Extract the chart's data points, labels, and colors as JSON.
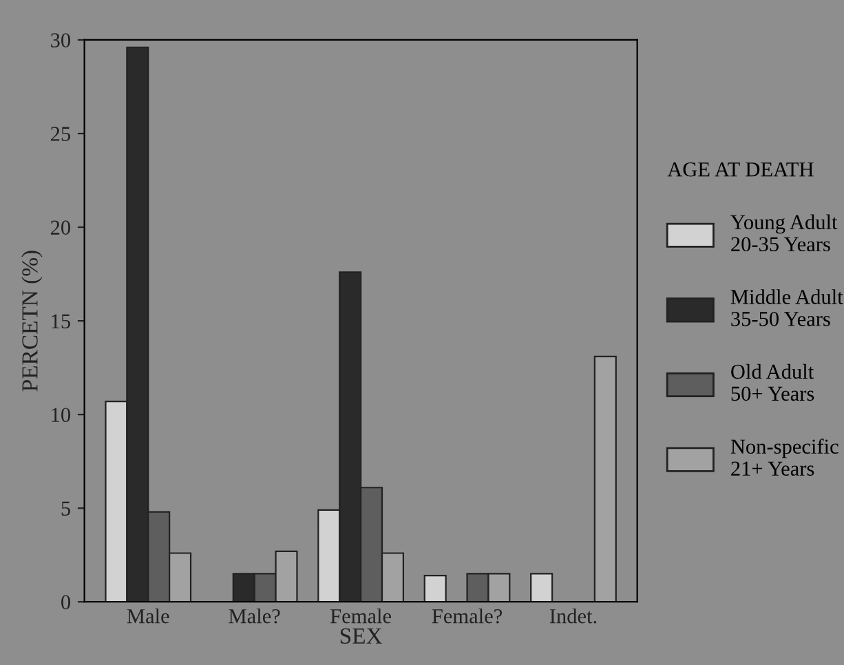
{
  "chart_data": {
    "type": "bar",
    "xlabel": "SEX",
    "ylabel": "PERCETN (%)",
    "legend_title": "AGE AT DEATH",
    "legend": "right",
    "categories": [
      "Male",
      "Male?",
      "Female",
      "Female?",
      "Indet."
    ],
    "series": [
      {
        "name": "Young Adult\n20-35 Years",
        "color": "#d2d2d2",
        "values": [
          10.7,
          null,
          4.9,
          1.4,
          1.5
        ]
      },
      {
        "name": "Middle Adult\n35-50 Years",
        "color": "#2a2a2a",
        "values": [
          29.6,
          1.5,
          17.6,
          null,
          null
        ]
      },
      {
        "name": "Old Adult\n50+ Years",
        "color": "#5e5e5e",
        "values": [
          4.8,
          1.5,
          6.1,
          1.5,
          null
        ]
      },
      {
        "name": "Non-specific\n21+ Years",
        "color": "#a2a2a2",
        "values": [
          2.6,
          2.7,
          2.6,
          1.5,
          13.1
        ]
      }
    ],
    "ylim": [
      0,
      30
    ],
    "yticks": [
      0,
      5,
      10,
      15,
      20,
      25,
      30
    ],
    "grid": false
  }
}
